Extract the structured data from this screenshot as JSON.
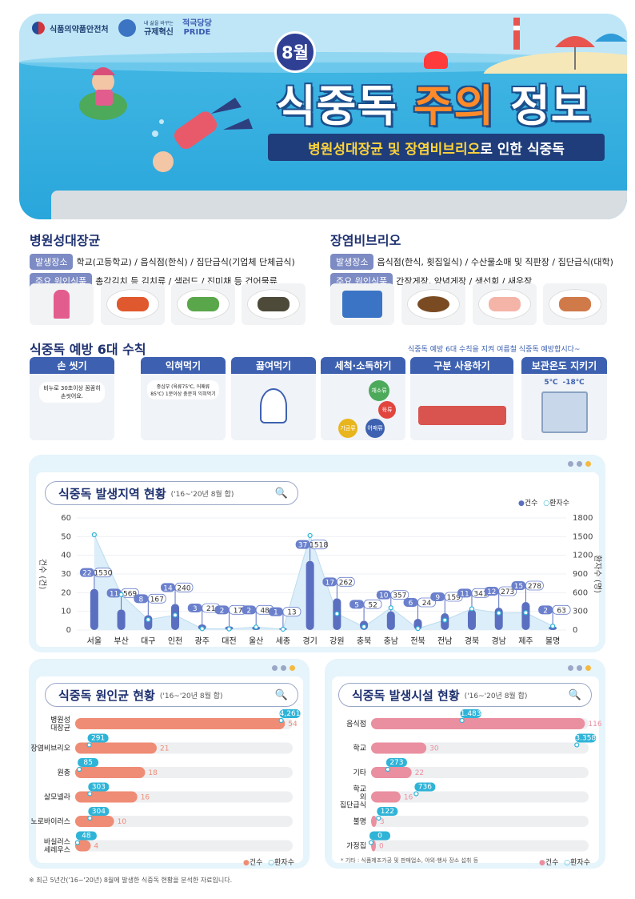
{
  "header": {
    "agency": "식품의약품안전처",
    "slogan1": "규제혁신",
    "slogan1_small": "내 삶을 바꾸는",
    "slogan2_top": "적극당당",
    "slogan2_bottom": "PRIDE",
    "month": "8월",
    "title_part1": "식중독 ",
    "title_part2": "주의",
    "title_part3": " 정보",
    "subtitle_hl": "병원성대장균 및 장염비브리오",
    "subtitle_rest": "로 인한 식중독"
  },
  "pathogens": [
    {
      "name": "병원성대장균",
      "place_label": "발생장소",
      "places": "학교(고등학교) / 음식점(한식) / 집단급식(기업체 단체급식)",
      "food_label": "주요 원인식품",
      "foods": "총각김치 등 김치류 / 샐러드 / 진미채 등 건어물류"
    },
    {
      "name": "장염비브리오",
      "place_label": "발생장소",
      "places": "음식점(한식, 횟집일식) / 수산물소매 및 직판장 / 집단급식(대학)",
      "food_label": "주요 원인식품",
      "foods": "간장게장, 양념게장 / 생선회 / 새우장"
    }
  ],
  "rules": {
    "title": "식중독 예방 6대 수칙",
    "note": "식중독 예방 6대 수칙을 지켜 여름철 식중독 예방합시다~",
    "items": [
      "손 씻기",
      "익혀먹기",
      "끓여먹기",
      "세척·소독하기",
      "구분 사용하기",
      "보관온도 지키기"
    ],
    "bubble1": "비누로 30초이상 꼼꼼히 손씻어요.",
    "bubble2": "중심부 (육류75℃, 어패류 85℃) 1분이상 충분히 익혀먹기",
    "tags": [
      "채소류",
      "육류",
      "어패류",
      "가금류"
    ],
    "temp_cold": "5℃",
    "temp_frozen": "-18℃"
  },
  "colors": {
    "count": "#5a6fc0",
    "patients": "#2fb4d8",
    "salmon": "#ef8c75",
    "pink": "#ea8fa0",
    "navy": "#1e3170"
  },
  "legend": {
    "count": "건수",
    "patients": "환자수"
  },
  "chart_data": [
    {
      "type": "bar",
      "title": "식중독 발생지역 현황",
      "subtitle": "('16~'20년 8월 합)",
      "ylabel": "건수 (건)",
      "y2label": "환자수 (명)",
      "ylim": [
        0,
        60
      ],
      "y2lim": [
        0,
        1800
      ],
      "yticks": [
        0,
        10,
        20,
        30,
        40,
        50,
        60
      ],
      "y2ticks": [
        0,
        300,
        600,
        900,
        1200,
        1500,
        1800
      ],
      "categories": [
        "서울",
        "부산",
        "대구",
        "인천",
        "광주",
        "대전",
        "울산",
        "세종",
        "경기",
        "강원",
        "충북",
        "충남",
        "전북",
        "전남",
        "경북",
        "경남",
        "제주",
        "불명"
      ],
      "series": [
        {
          "name": "건수",
          "values": [
            22,
            11,
            8,
            14,
            3,
            2,
            2,
            1,
            37,
            17,
            5,
            10,
            6,
            9,
            11,
            12,
            15,
            2
          ]
        },
        {
          "name": "환자수",
          "values": [
            1530,
            569,
            167,
            240,
            21,
            17,
            48,
            13,
            1518,
            262,
            52,
            357,
            24,
            159,
            341,
            273,
            278,
            63
          ]
        }
      ],
      "legend_position": "top-right"
    },
    {
      "type": "bar",
      "orientation": "horizontal",
      "title": "식중독 원인균 현황",
      "subtitle": "('16~'20년 8월 합)",
      "categories": [
        "병원성 대장균",
        "장염비브리오",
        "원충",
        "살모넬라",
        "노로바이러스",
        "바실러스 세레우스"
      ],
      "series": [
        {
          "name": "건수",
          "values": [
            54,
            21,
            18,
            16,
            10,
            4
          ]
        },
        {
          "name": "환자수",
          "values": [
            4261,
            291,
            85,
            303,
            304,
            48
          ]
        }
      ],
      "legend_position": "bottom-right"
    },
    {
      "type": "bar",
      "orientation": "horizontal",
      "title": "식중독 발생시설 현황",
      "subtitle": "('16~'20년 8월 합)",
      "categories": [
        "음식점",
        "학교",
        "기타",
        "학교 외 집단급식",
        "불명",
        "가정집"
      ],
      "series": [
        {
          "name": "건수",
          "values": [
            116,
            30,
            22,
            16,
            3,
            0
          ]
        },
        {
          "name": "환자수",
          "values": [
            1483,
            3358,
            273,
            736,
            122,
            0
          ]
        }
      ],
      "note": "* 기타 : 식품제조가공 및 판매업소, 야외·행사 장소 섭취 등",
      "legend_position": "bottom-right"
    }
  ],
  "footnote": "※ 최근 5년간('16~'20년) 8월에 발생한 식중독 현황을 분석한 자료입니다."
}
